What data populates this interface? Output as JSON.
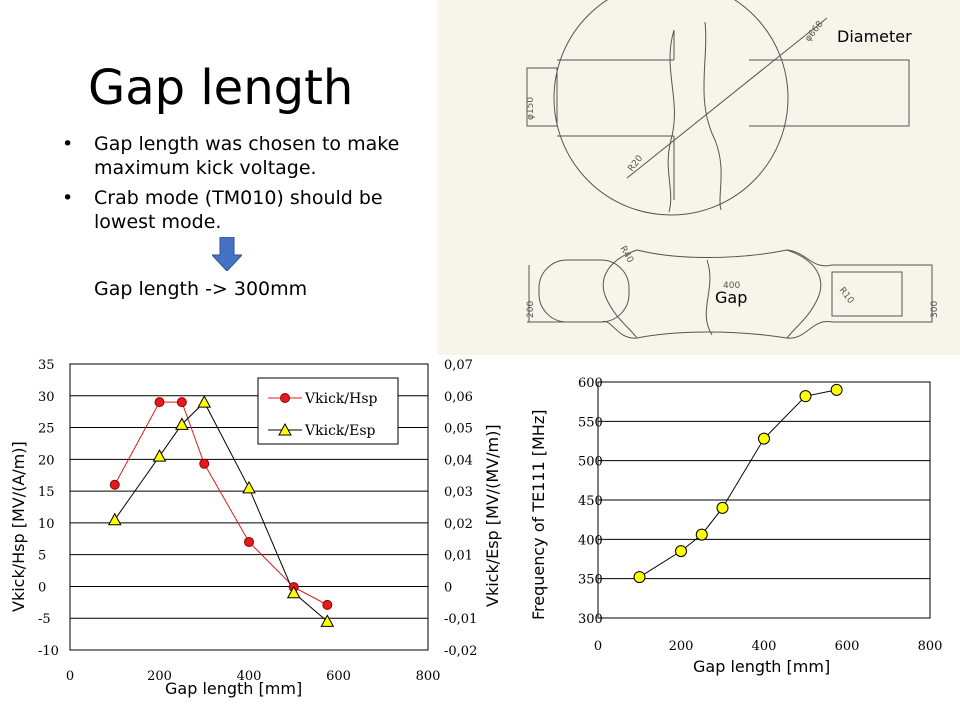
{
  "slide": {
    "title": "Gap length",
    "bullets": [
      "Gap length was chosen to make maximum kick voltage.",
      "Crab mode (TM010) should be lowest mode."
    ],
    "result": "Gap length -> 300mm"
  },
  "drawing": {
    "diameter_label": "Diameter",
    "gap_label": "Gap",
    "dims": {
      "d668": "φ668",
      "d150": "φ150",
      "r20": "R20",
      "r40": "R40",
      "r10": "R10",
      "l400": "400",
      "l200": "200",
      "l300": "300"
    }
  },
  "colors": {
    "red": "#e41a1c",
    "yellow": "#ffff00",
    "arrow": "#4472c4"
  },
  "chart_data": [
    {
      "type": "line",
      "xlabel": "Gap length [mm]",
      "ylabel": "Vkick/Hsp [MV/(A/m)]",
      "ylabel_right": "Vkick/Esp [MV/(MV/m)]",
      "xlim": [
        0,
        800
      ],
      "ylim": [
        -10,
        35
      ],
      "ylim_right": [
        -0.02,
        0.07
      ],
      "x_ticks": [
        "0",
        "200",
        "400",
        "600",
        "800"
      ],
      "y_ticks": [
        "35",
        "30",
        "25",
        "20",
        "15",
        "10",
        "5",
        "0",
        "-5",
        "-10"
      ],
      "y2_ticks": [
        "0,07",
        "0,06",
        "0,05",
        "0,04",
        "0,03",
        "0,02",
        "0,01",
        "0",
        "-0,01",
        "-0,02"
      ],
      "grid": true,
      "legend": "top-right",
      "series": [
        {
          "name": "Vkick/Hsp",
          "axis": "left",
          "marker": "circle",
          "color": "#e41a1c",
          "x": [
            100,
            200,
            250,
            300,
            400,
            500,
            575
          ],
          "y": [
            16,
            29,
            29,
            19.3,
            7,
            -0.1,
            -2.9
          ]
        },
        {
          "name": "Vkick/Esp",
          "axis": "right",
          "marker": "triangle",
          "color": "#ffff00",
          "x": [
            100,
            200,
            250,
            300,
            400,
            500,
            575
          ],
          "y": [
            0.021,
            0.041,
            0.051,
            0.058,
            0.031,
            -0.002,
            -0.011
          ]
        }
      ]
    },
    {
      "type": "line",
      "xlabel": "Gap length [mm]",
      "ylabel": "Frequency of TE111 [MHz]",
      "xlim": [
        0,
        800
      ],
      "ylim": [
        300,
        600
      ],
      "x_ticks": [
        "0",
        "200",
        "400",
        "600",
        "800"
      ],
      "y_ticks": [
        "600",
        "550",
        "500",
        "450",
        "400",
        "350",
        "300"
      ],
      "grid": true,
      "series": [
        {
          "marker": "circle",
          "color": "#ffff00",
          "x": [
            100,
            200,
            250,
            300,
            400,
            500,
            575
          ],
          "y": [
            352,
            385,
            406,
            440,
            528,
            582,
            590
          ]
        }
      ]
    }
  ]
}
